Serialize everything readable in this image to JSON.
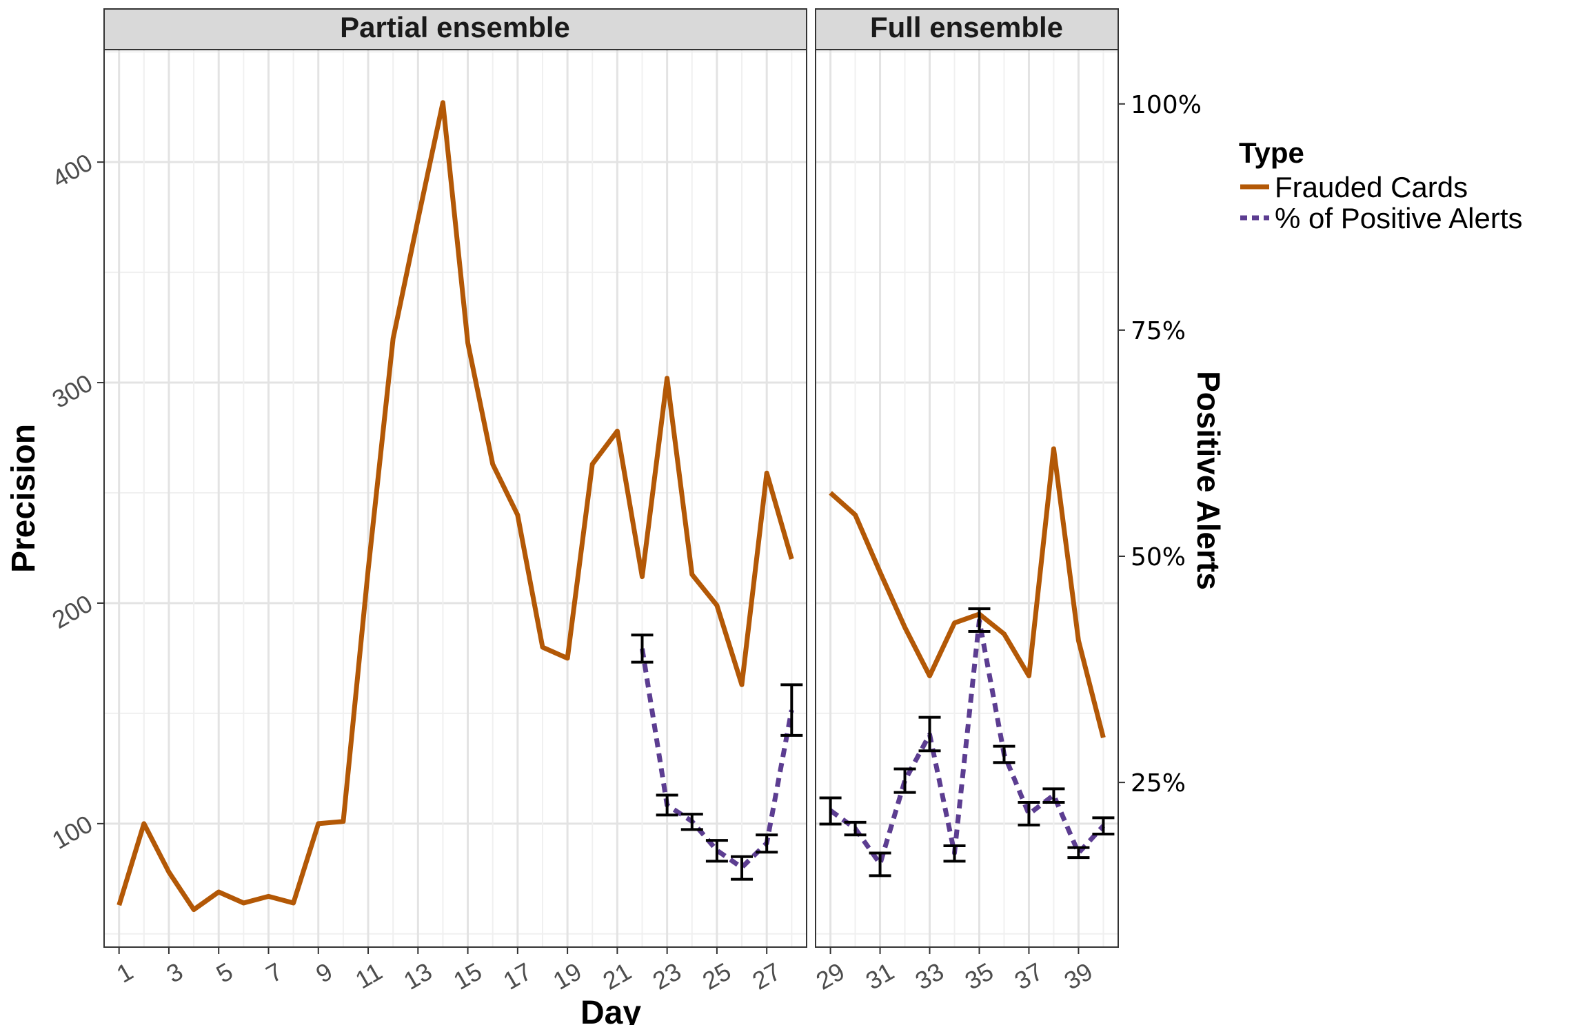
{
  "chart_data": {
    "type": "line",
    "xlabel": "Day",
    "ylabel": "Precision",
    "y2label": "Positive Alerts",
    "ylim": [
      44,
      451
    ],
    "y2lim": [
      0.068,
      1.06
    ],
    "yticks": [
      "100",
      "200",
      "300",
      "400"
    ],
    "y2ticks": [
      "25%",
      "50%",
      "75%",
      "100%"
    ],
    "legend": {
      "title": "Type",
      "position": "right",
      "entries": [
        "Frauded Cards",
        "% of Positive Alerts"
      ]
    },
    "colors": {
      "frauded": "#b35806",
      "alerts": "#5c3d91",
      "errorbar": "#000000"
    },
    "panels": [
      {
        "title": "Partial ensemble",
        "xlim": [
          0.4,
          28.6
        ],
        "xticks": [
          "1",
          "3",
          "5",
          "7",
          "9",
          "11",
          "13",
          "15",
          "17",
          "19",
          "21",
          "23",
          "25",
          "27"
        ],
        "frauded_cards": {
          "x": [
            1,
            2,
            3,
            4,
            5,
            6,
            7,
            8,
            9,
            10,
            11,
            12,
            13,
            14,
            15,
            16,
            17,
            18,
            19,
            20,
            21,
            22,
            23,
            24,
            25,
            26,
            27,
            28
          ],
          "y": [
            63,
            100,
            78,
            61,
            69,
            64,
            67,
            64,
            100,
            101,
            215,
            320,
            374,
            427,
            318,
            263,
            240,
            180,
            175,
            263,
            278,
            212,
            302,
            213,
            199,
            163,
            259,
            220
          ]
        },
        "positive_alerts": {
          "x": [
            22,
            23,
            24,
            25,
            26,
            27,
            28
          ],
          "y": [
            0.398,
            0.225,
            0.207,
            0.175,
            0.156,
            0.183,
            0.33
          ],
          "lo": [
            0.383,
            0.214,
            0.198,
            0.163,
            0.143,
            0.173,
            0.302
          ],
          "hi": [
            0.413,
            0.236,
            0.215,
            0.186,
            0.168,
            0.192,
            0.358
          ]
        }
      },
      {
        "title": "Full ensemble",
        "xlim": [
          28.4,
          40.6
        ],
        "xticks": [
          "29",
          "31",
          "33",
          "35",
          "37",
          "39"
        ],
        "frauded_cards": {
          "x": [
            29,
            30,
            31,
            32,
            33,
            34,
            35,
            36,
            37,
            38,
            39,
            40
          ],
          "y": [
            250,
            240,
            214,
            189,
            167,
            191,
            195,
            186,
            167,
            270,
            183,
            139
          ]
        },
        "positive_alerts": {
          "x": [
            29,
            30,
            31,
            32,
            33,
            34,
            35,
            36,
            37,
            38,
            39,
            40
          ],
          "y": [
            0.219,
            0.199,
            0.16,
            0.252,
            0.303,
            0.172,
            0.429,
            0.281,
            0.215,
            0.236,
            0.172,
            0.202
          ],
          "lo": [
            0.204,
            0.192,
            0.147,
            0.239,
            0.285,
            0.163,
            0.417,
            0.272,
            0.203,
            0.228,
            0.167,
            0.193
          ],
          "hi": [
            0.233,
            0.206,
            0.172,
            0.265,
            0.322,
            0.18,
            0.442,
            0.29,
            0.228,
            0.243,
            0.178,
            0.211
          ]
        }
      }
    ]
  }
}
